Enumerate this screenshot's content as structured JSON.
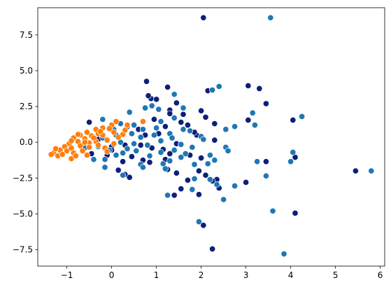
{
  "chart_data": {
    "type": "scatter",
    "title": "",
    "xlabel": "",
    "ylabel": "",
    "xlim": [
      -1.65,
      6.1
    ],
    "ylim": [
      -8.65,
      9.4
    ],
    "xticks": [
      -1,
      0,
      1,
      2,
      3,
      4,
      5,
      6
    ],
    "yticks": [
      -7.5,
      -5.0,
      -2.5,
      0.0,
      2.5,
      5.0,
      7.5
    ],
    "xtick_labels": [
      "−1",
      "0",
      "1",
      "2",
      "3",
      "4",
      "5",
      "6"
    ],
    "ytick_labels": [
      "−7.5",
      "−5.0",
      "−2.5",
      "0.0",
      "2.5",
      "5.0",
      "7.5"
    ],
    "grid": false,
    "legend": "none",
    "series": [
      {
        "color": "#0d1f7a",
        "points": [
          [
            2.05,
            8.7
          ],
          [
            0.78,
            4.25
          ],
          [
            1.25,
            3.85
          ],
          [
            3.05,
            3.95
          ],
          [
            3.3,
            3.75
          ],
          [
            2.15,
            3.6
          ],
          [
            3.45,
            2.7
          ],
          [
            1.45,
            2.75
          ],
          [
            0.88,
            3.05
          ],
          [
            1.0,
            3.0
          ],
          [
            0.82,
            3.25
          ],
          [
            1.3,
            2.25
          ],
          [
            2.0,
            2.2
          ],
          [
            2.1,
            1.75
          ],
          [
            1.6,
            1.95
          ],
          [
            1.3,
            2.0
          ],
          [
            3.05,
            1.55
          ],
          [
            4.05,
            1.55
          ],
          [
            0.95,
            1.6
          ],
          [
            1.55,
            1.4
          ],
          [
            1.7,
            1.2
          ],
          [
            2.3,
            1.3
          ],
          [
            1.2,
            1.1
          ],
          [
            0.6,
            0.9
          ],
          [
            0.35,
            1.1
          ],
          [
            0.75,
            0.5
          ],
          [
            1.9,
            0.5
          ],
          [
            2.3,
            0.15
          ],
          [
            1.05,
            0.6
          ],
          [
            1.45,
            -0.1
          ],
          [
            0.9,
            -0.4
          ],
          [
            0.65,
            -0.2
          ],
          [
            -0.5,
            1.4
          ],
          [
            -0.3,
            0.2
          ],
          [
            0.0,
            -0.3
          ],
          [
            -0.1,
            -0.9
          ],
          [
            0.25,
            -1.35
          ],
          [
            0.45,
            -1.0
          ],
          [
            0.0,
            -0.55
          ],
          [
            0.3,
            -0.2
          ],
          [
            1.15,
            -0.5
          ],
          [
            1.3,
            -0.8
          ],
          [
            1.75,
            -0.9
          ],
          [
            2.0,
            -1.1
          ],
          [
            1.95,
            -2.0
          ],
          [
            1.45,
            -2.15
          ],
          [
            1.25,
            -1.9
          ],
          [
            0.7,
            -1.25
          ],
          [
            -0.45,
            -0.8
          ],
          [
            0.15,
            -1.95
          ],
          [
            2.1,
            -2.3
          ],
          [
            2.35,
            -2.6
          ],
          [
            2.25,
            -2.7
          ],
          [
            3.0,
            -2.8
          ],
          [
            3.45,
            -1.35
          ],
          [
            4.1,
            -1.05
          ],
          [
            1.7,
            -2.65
          ],
          [
            1.55,
            -3.25
          ],
          [
            1.4,
            -3.7
          ],
          [
            2.4,
            -3.2
          ],
          [
            1.95,
            -3.65
          ],
          [
            2.05,
            -5.8
          ],
          [
            2.25,
            -7.45
          ],
          [
            4.1,
            -4.95
          ],
          [
            5.45,
            -2.0
          ],
          [
            0.3,
            -2.25
          ],
          [
            0.4,
            -2.45
          ],
          [
            0.85,
            -1.4
          ],
          [
            1.2,
            -1.2
          ],
          [
            1.85,
            0.7
          ]
        ]
      },
      {
        "color": "#1f77b4",
        "points": [
          [
            3.55,
            8.7
          ],
          [
            1.4,
            3.35
          ],
          [
            2.4,
            3.9
          ],
          [
            2.25,
            3.65
          ],
          [
            3.15,
            2.05
          ],
          [
            3.2,
            1.2
          ],
          [
            2.75,
            1.1
          ],
          [
            2.55,
            0.9
          ],
          [
            4.25,
            1.8
          ],
          [
            0.4,
            2.1
          ],
          [
            0.75,
            2.4
          ],
          [
            0.9,
            2.55
          ],
          [
            1.05,
            2.3
          ],
          [
            1.6,
            2.4
          ],
          [
            1.4,
            1.7
          ],
          [
            1.1,
            1.45
          ],
          [
            0.2,
            1.3
          ],
          [
            0.3,
            0.8
          ],
          [
            -0.2,
            1.6
          ],
          [
            0.5,
            1.2
          ],
          [
            1.6,
            0.9
          ],
          [
            1.75,
            0.8
          ],
          [
            2.0,
            0.4
          ],
          [
            1.3,
            0.6
          ],
          [
            0.95,
            0.5
          ],
          [
            0.65,
            0.35
          ],
          [
            0.45,
            0.6
          ],
          [
            0.1,
            0.5
          ],
          [
            -0.2,
            0.3
          ],
          [
            0.2,
            0.0
          ],
          [
            0.5,
            -0.1
          ],
          [
            0.8,
            -0.2
          ],
          [
            1.1,
            0.1
          ],
          [
            1.35,
            0.3
          ],
          [
            1.55,
            -0.15
          ],
          [
            1.8,
            -0.35
          ],
          [
            2.05,
            0.2
          ],
          [
            2.55,
            -0.35
          ],
          [
            2.6,
            -0.6
          ],
          [
            0.35,
            -0.45
          ],
          [
            -0.05,
            -0.55
          ],
          [
            -0.3,
            -0.3
          ],
          [
            0.1,
            -0.9
          ],
          [
            0.25,
            -0.75
          ],
          [
            0.55,
            -0.6
          ],
          [
            0.85,
            -0.95
          ],
          [
            1.1,
            -0.7
          ],
          [
            1.4,
            -0.55
          ],
          [
            1.65,
            -0.8
          ],
          [
            2.2,
            -0.9
          ],
          [
            2.3,
            -1.25
          ],
          [
            1.55,
            -1.05
          ],
          [
            1.3,
            -1.3
          ],
          [
            1.15,
            -1.5
          ],
          [
            0.65,
            -1.55
          ],
          [
            0.7,
            -1.75
          ],
          [
            -0.15,
            -1.2
          ],
          [
            -0.15,
            -1.75
          ],
          [
            -0.4,
            -1.2
          ],
          [
            0.25,
            -2.3
          ],
          [
            1.2,
            -1.85
          ],
          [
            1.85,
            -1.55
          ],
          [
            2.15,
            -1.5
          ],
          [
            1.85,
            -2.55
          ],
          [
            2.2,
            -2.6
          ],
          [
            2.35,
            -2.95
          ],
          [
            2.75,
            -3.05
          ],
          [
            3.25,
            -1.35
          ],
          [
            4.05,
            -0.7
          ],
          [
            4.0,
            -1.35
          ],
          [
            3.45,
            -2.35
          ],
          [
            1.25,
            -3.7
          ],
          [
            1.8,
            -3.3
          ],
          [
            2.5,
            -4.0
          ],
          [
            1.95,
            -5.55
          ],
          [
            3.6,
            -4.8
          ],
          [
            3.85,
            -7.8
          ],
          [
            5.8,
            -2.0
          ],
          [
            -0.6,
            -0.4
          ],
          [
            0.05,
            0.9
          ],
          [
            0.7,
            0.9
          ],
          [
            1.0,
            1.0
          ]
        ]
      },
      {
        "color": "#ff7f0e",
        "points": [
          [
            0.7,
            1.45
          ],
          [
            0.1,
            1.45
          ],
          [
            0.0,
            1.2
          ],
          [
            -0.2,
            1.0
          ],
          [
            -0.35,
            0.9
          ],
          [
            -0.3,
            0.6
          ],
          [
            -0.55,
            0.7
          ],
          [
            -0.7,
            0.5
          ],
          [
            -0.85,
            0.3
          ],
          [
            -0.6,
            0.25
          ],
          [
            -0.45,
            0.45
          ],
          [
            -0.2,
            0.5
          ],
          [
            0.05,
            0.7
          ],
          [
            0.25,
            0.55
          ],
          [
            -0.1,
            0.15
          ],
          [
            -0.35,
            0.05
          ],
          [
            -0.5,
            -0.05
          ],
          [
            -0.75,
            0.05
          ],
          [
            -0.95,
            -0.1
          ],
          [
            -1.05,
            -0.3
          ],
          [
            -1.15,
            -0.55
          ],
          [
            -1.3,
            -0.75
          ],
          [
            -1.35,
            -0.85
          ],
          [
            -1.2,
            -0.95
          ],
          [
            -1.0,
            -0.6
          ],
          [
            -0.9,
            -0.4
          ],
          [
            -0.7,
            -0.25
          ],
          [
            -0.5,
            -0.35
          ],
          [
            -0.3,
            -0.2
          ],
          [
            -0.15,
            -0.4
          ],
          [
            0.05,
            -0.1
          ],
          [
            -0.65,
            -0.6
          ],
          [
            -0.85,
            -0.75
          ],
          [
            -0.9,
            -1.15
          ],
          [
            -0.8,
            -0.95
          ],
          [
            -1.1,
            -0.85
          ],
          [
            -0.6,
            0.0
          ],
          [
            -0.4,
            0.3
          ],
          [
            -0.25,
            0.75
          ],
          [
            -0.05,
            0.95
          ],
          [
            0.3,
            0.85
          ],
          [
            0.15,
            0.35
          ],
          [
            -0.1,
            -0.65
          ],
          [
            -0.55,
            -0.9
          ],
          [
            -0.75,
            0.55
          ],
          [
            -0.9,
            0.1
          ],
          [
            -1.25,
            -0.45
          ],
          [
            0.35,
            1.2
          ]
        ]
      }
    ]
  }
}
